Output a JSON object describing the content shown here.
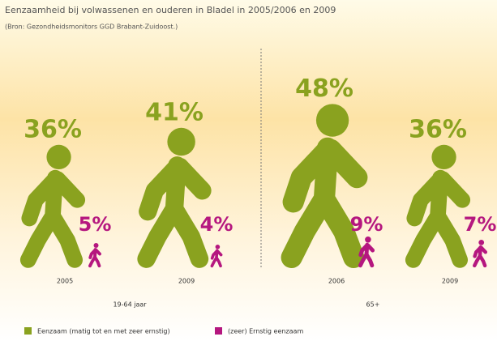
{
  "chart_data": {
    "type": "pictogram",
    "title": "Eenzaamheid bij volwassenen en ouderen in Bladel in 2005/2006 en 2009",
    "subtitle": "(Bron: Gezondheidsmonitors GGD Brabant-Zuidoost.)",
    "categories": [
      "2005",
      "2009",
      "2006",
      "2009"
    ],
    "groups": [
      "19-64 jaar",
      "65+"
    ],
    "series": [
      {
        "name": "Eenzaam (matig tot en met zeer ernstig)",
        "color": "#8aa21f",
        "values": [
          36,
          41,
          48,
          36
        ],
        "value_labels": [
          "36%",
          "41%",
          "48%",
          "36%"
        ]
      },
      {
        "name": "(zeer) Ernstig eenzaam",
        "color": "#b5177f",
        "values": [
          5,
          4,
          9,
          7
        ],
        "value_labels": [
          "5%",
          "4%",
          "9%",
          "7%"
        ]
      }
    ]
  }
}
